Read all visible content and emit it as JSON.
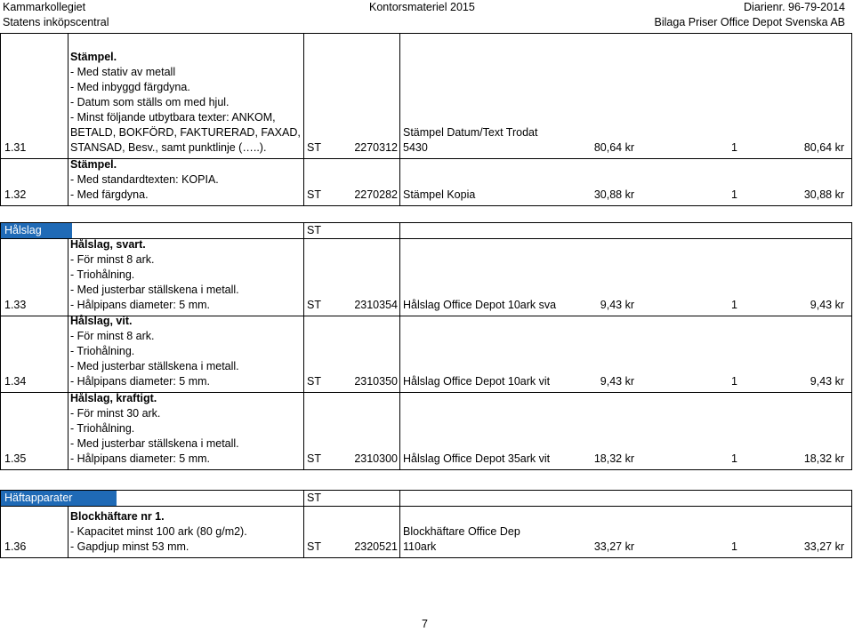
{
  "header": {
    "left1": "Kammarkollegiet",
    "left2": "Statens inköpscentral",
    "center1": "Kontorsmateriel 2015",
    "right1": "Diarienr. 96-79-2014",
    "right2": "Bilaga Priser Office Depot Svenska AB"
  },
  "rows_top": [
    {
      "num": "1.31",
      "desc_head": "Stämpel.",
      "desc_body": "- Med stativ av metall\n- Med inbyggd färgdyna.\n- Datum som ställs om med hjul.\n- Minst följande utbytbara texter: ANKOM,\nBETALD, BOKFÖRD, FAKTURERAD, FAXAD,\nSTANSAD, Besv., samt punktlinje (…..).",
      "st": "ST",
      "art": "2270312",
      "prod": "Stämpel Datum/Text Trodat\n5430",
      "price": "80,64 kr",
      "qty": "1",
      "total": "80,64 kr"
    },
    {
      "num": "1.32",
      "desc_head": "Stämpel.",
      "desc_body": "- Med standardtexten: KOPIA.\n- Med färgdyna.",
      "st": "ST",
      "art": "2270282",
      "prod": "Stämpel Kopia",
      "price": "30,88 kr",
      "qty": "1",
      "total": "30,88 kr"
    }
  ],
  "section_halslag": {
    "title": "Hålslag",
    "st": "ST"
  },
  "rows_halslag": [
    {
      "num": "1.33",
      "desc_head": "Hålslag, svart.",
      "desc_body": "- För minst 8 ark.\n- Triohålning.\n- Med justerbar ställskena i metall.\n- Hålpipans diameter: 5 mm.",
      "st": "ST",
      "art": "2310354",
      "prod": "Hålslag Office Depot 10ark sva",
      "price": "9,43 kr",
      "qty": "1",
      "total": "9,43 kr"
    },
    {
      "num": "1.34",
      "desc_head": "Hålslag, vit.",
      "desc_body": "- För minst 8 ark.\n- Triohålning.\n- Med justerbar ställskena i metall.\n- Hålpipans diameter: 5 mm.",
      "st": "ST",
      "art": "2310350",
      "prod": "Hålslag Office Depot 10ark vit",
      "price": "9,43 kr",
      "qty": "1",
      "total": "9,43 kr"
    },
    {
      "num": "1.35",
      "desc_head": "Hålslag, kraftigt.",
      "desc_body": "- För minst 30 ark.\n- Triohålning.\n- Med justerbar ställskena i metall.\n- Hålpipans diameter: 5 mm.",
      "st": "ST",
      "art": "2310300",
      "prod": "Hålslag Office Depot 35ark vit",
      "price": "18,32 kr",
      "qty": "1",
      "total": "18,32 kr"
    }
  ],
  "section_haftapparater": {
    "title": "Häftapparater",
    "st": "ST"
  },
  "rows_haft": [
    {
      "num": "1.36",
      "desc_head": "Blockhäftare nr 1.",
      "desc_body": "- Kapacitet minst 100 ark (80 g/m2).\n- Gapdjup minst 53 mm.",
      "st": "ST",
      "art": "2320521",
      "prod": "Blockhäftare Office Dep\n110ark",
      "price": "33,27 kr",
      "qty": "1",
      "total": "33,27 kr"
    }
  ],
  "colors": {
    "section_bg": "#1f6ab6",
    "section_text": "#ffffff"
  },
  "footer": {
    "page_number": "7"
  }
}
